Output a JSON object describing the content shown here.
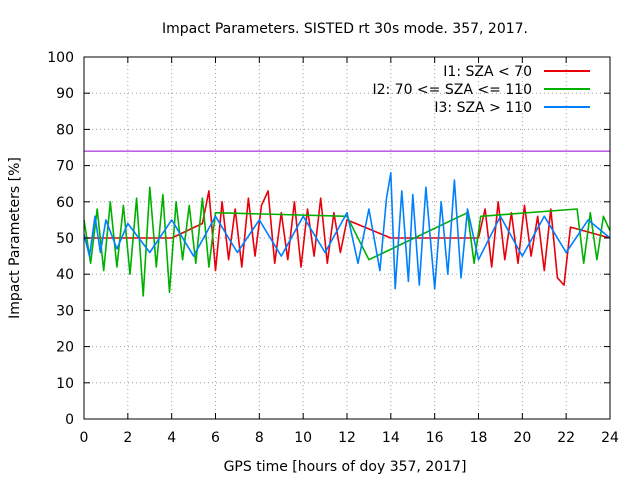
{
  "chart_data": {
    "type": "line",
    "title": "Impact Parameters. SISTED rt 30s mode. 357, 2017.",
    "xlabel": "GPS time [hours of doy 357, 2017]",
    "ylabel": "Impact Parameters [%]",
    "xlim": [
      0,
      24
    ],
    "ylim": [
      0,
      100
    ],
    "xticks": [
      "0",
      "2",
      "4",
      "6",
      "8",
      "10",
      "12",
      "14",
      "16",
      "18",
      "20",
      "22",
      "24"
    ],
    "yticks": [
      "0",
      "10",
      "20",
      "30",
      "40",
      "50",
      "60",
      "70",
      "80",
      "90",
      "100"
    ],
    "grid": true,
    "legend_position": "top-right",
    "reference_line": {
      "y": 74,
      "color": "#9400d3"
    },
    "series": [
      {
        "name": "I1: SZA < 70",
        "color": "#e8000b",
        "x": [
          0,
          2,
          4,
          5.4,
          5.7,
          6.0,
          6.3,
          6.6,
          6.9,
          7.2,
          7.5,
          7.8,
          8.1,
          8.4,
          8.7,
          9.0,
          9.3,
          9.6,
          9.9,
          10.2,
          10.5,
          10.8,
          11.1,
          11.4,
          11.7,
          12.0,
          14,
          16,
          18,
          18.3,
          18.6,
          18.9,
          19.2,
          19.5,
          19.8,
          20.1,
          20.4,
          20.7,
          21.0,
          21.3,
          21.6,
          21.9,
          22.2,
          24
        ],
        "values": [
          50,
          50,
          50,
          54,
          63,
          41,
          60,
          44,
          58,
          42,
          61,
          45,
          59,
          63,
          43,
          57,
          44,
          60,
          42,
          58,
          45,
          61,
          43,
          57,
          46,
          55,
          50,
          50,
          50,
          58,
          42,
          60,
          44,
          57,
          43,
          59,
          45,
          56,
          41,
          58,
          39,
          37,
          53,
          50
        ]
      },
      {
        "name": "I2: 70 <= SZA <= 110",
        "color": "#00b000",
        "x": [
          0,
          0.3,
          0.6,
          0.9,
          1.2,
          1.5,
          1.8,
          2.1,
          2.4,
          2.7,
          3.0,
          3.3,
          3.6,
          3.9,
          4.2,
          4.5,
          4.8,
          5.1,
          5.4,
          5.7,
          6.0,
          12,
          13,
          17.5,
          17.8,
          18.1,
          22.5,
          22.8,
          23.1,
          23.4,
          23.7,
          24
        ],
        "values": [
          55,
          43,
          58,
          41,
          60,
          42,
          59,
          40,
          61,
          34,
          64,
          42,
          62,
          35,
          60,
          44,
          59,
          43,
          61,
          42,
          57,
          56,
          44,
          57,
          43,
          56,
          58,
          43,
          57,
          44,
          56,
          52
        ]
      },
      {
        "name": "I3: SZA > 110",
        "color": "#0080ff",
        "x": [
          0,
          0.25,
          0.5,
          0.75,
          1.0,
          1.5,
          2.0,
          3.0,
          4.0,
          5.0,
          6.0,
          7.0,
          8.0,
          9.0,
          10.0,
          11.0,
          12.0,
          12.5,
          13.0,
          13.5,
          13.8,
          14.0,
          14.2,
          14.5,
          14.8,
          15.0,
          15.3,
          15.6,
          16.0,
          16.3,
          16.6,
          16.9,
          17.2,
          17.5,
          18.0,
          19.0,
          20.0,
          21.0,
          22.0,
          23.0,
          24.0
        ],
        "values": [
          51,
          45,
          56,
          46,
          55,
          47,
          54,
          46,
          55,
          45,
          56,
          46,
          55,
          45,
          56,
          46,
          57,
          43,
          58,
          41,
          61,
          68,
          36,
          63,
          38,
          62,
          37,
          64,
          36,
          60,
          40,
          66,
          39,
          58,
          44,
          56,
          45,
          56,
          46,
          55,
          50
        ]
      }
    ]
  }
}
